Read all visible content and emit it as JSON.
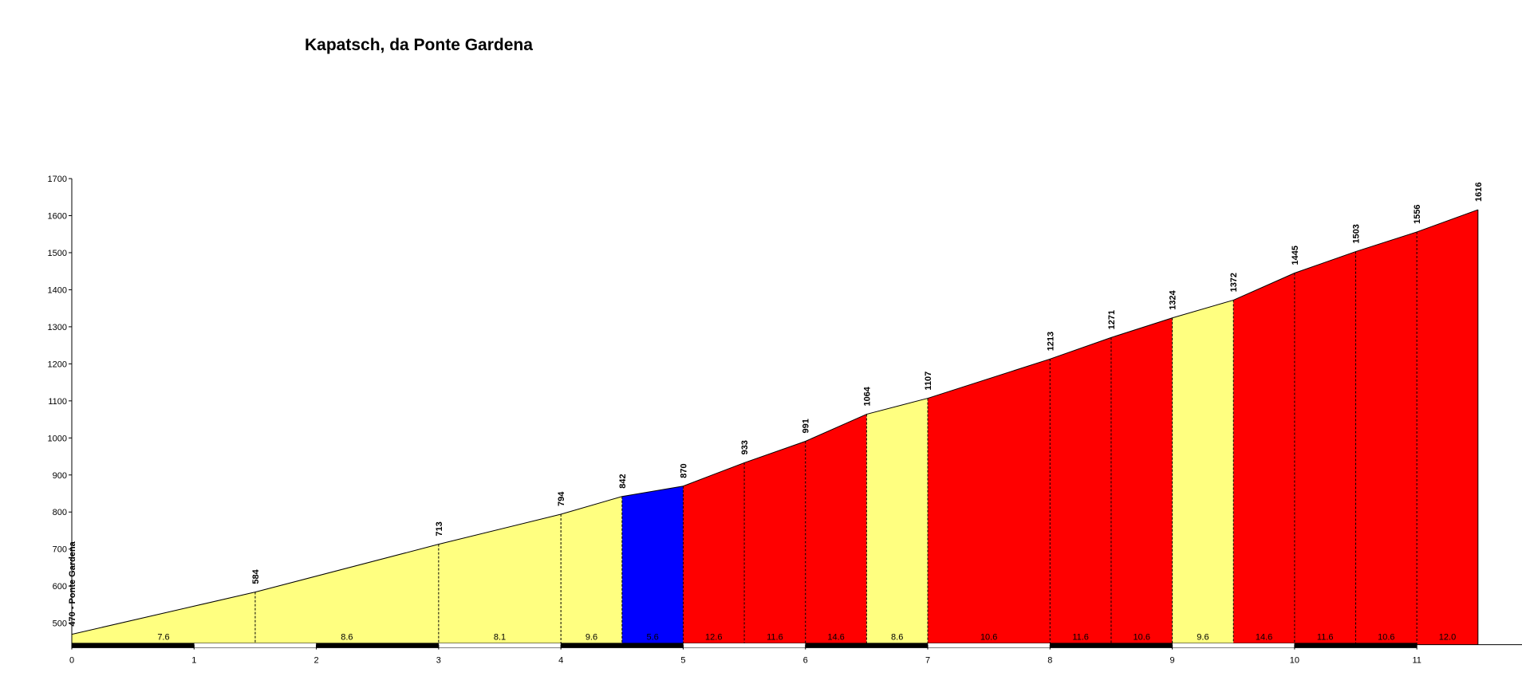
{
  "chart_data": {
    "type": "elevation-profile",
    "title": "Kapatsch, da Ponte Gardena",
    "x": [
      0,
      1.5,
      3,
      4,
      4.5,
      5,
      5.5,
      6,
      6.5,
      7,
      8,
      8.5,
      9,
      9.5,
      10,
      10.5,
      11,
      11.5
    ],
    "values": [
      470,
      584,
      713,
      794,
      842,
      870,
      933,
      991,
      1064,
      1107,
      1213,
      1271,
      1324,
      1372,
      1445,
      1503,
      1556,
      1616
    ],
    "value_labels": [
      "470 - Ponte Gardena",
      "584",
      "713",
      "794",
      "842",
      "870",
      "933",
      "991",
      "1064",
      "1107",
      "1213",
      "1271",
      "1324",
      "1372",
      "1445",
      "1503",
      "1556",
      "1616"
    ],
    "gradients": [
      7.6,
      8.6,
      8.1,
      9.6,
      5.6,
      12.6,
      11.6,
      14.6,
      8.6,
      10.6,
      11.6,
      10.6,
      9.6,
      14.6,
      11.6,
      10.6,
      12
    ],
    "gradient_labels": [
      "7.6",
      "8.6",
      "8.1",
      "9.6",
      "5.6",
      "12.6",
      "11.6",
      "14.6",
      "8.6",
      "10.6",
      "11.6",
      "10.6",
      "9.6",
      "14.6",
      "11.6",
      "10.6",
      "12.0"
    ],
    "segment_colors": [
      "#ffff80",
      "#ffff80",
      "#ffff80",
      "#ffff80",
      "#0000ff",
      "#ff0000",
      "#ff0000",
      "#ff0000",
      "#ffff80",
      "#ff0000",
      "#ff0000",
      "#ff0000",
      "#ffff80",
      "#ff0000",
      "#ff0000",
      "#ff0000",
      "#ff0000"
    ],
    "xlim": [
      0,
      11.86
    ],
    "xticks": [
      0,
      1,
      2,
      3,
      4,
      5,
      6,
      7,
      8,
      9,
      10,
      11
    ],
    "ylim": [
      442,
      1700
    ],
    "yticks": [
      500,
      600,
      700,
      800,
      900,
      1000,
      1100,
      1200,
      1300,
      1400,
      1500,
      1600,
      1700
    ]
  }
}
